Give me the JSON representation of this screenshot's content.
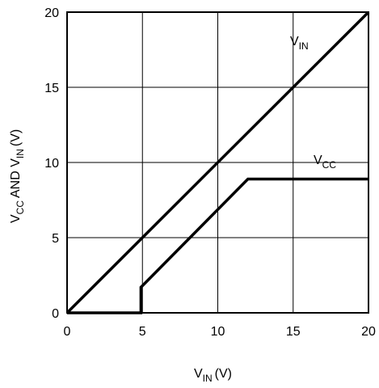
{
  "chart_data": {
    "type": "line",
    "xlabel": {
      "main": "V",
      "sub": "IN",
      "unit": "(V)"
    },
    "ylabel": {
      "main1": "V",
      "sub1": "CC",
      "mid": "AND V",
      "sub2": "IN",
      "unit": "(V)"
    },
    "xlim": [
      0,
      20
    ],
    "ylim": [
      0,
      20
    ],
    "x_ticks": [
      "0",
      "5",
      "10",
      "15",
      "20"
    ],
    "y_ticks": [
      "0",
      "5",
      "10",
      "15",
      "20"
    ],
    "grid": true,
    "series": [
      {
        "name": "VIN",
        "label_main": "V",
        "label_sub": "IN",
        "x": [
          0,
          20
        ],
        "y": [
          0,
          20
        ]
      },
      {
        "name": "VCC",
        "label_main": "V",
        "label_sub": "CC",
        "x": [
          0,
          4.9,
          4.9,
          12,
          20
        ],
        "y": [
          0,
          0,
          1.7,
          8.9,
          8.9
        ]
      }
    ]
  }
}
